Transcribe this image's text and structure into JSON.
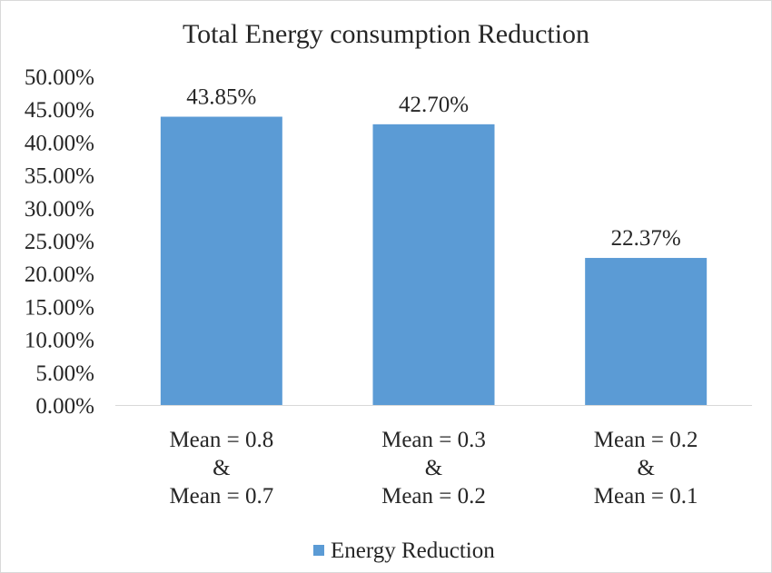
{
  "chart_data": {
    "type": "bar",
    "title": "Total Energy  consumption  Reduction",
    "categories": [
      [
        "Mean = 0.8",
        "&",
        "Mean = 0.7"
      ],
      [
        "Mean = 0.3",
        "&",
        "Mean = 0.2"
      ],
      [
        "Mean = 0.2",
        "&",
        "Mean = 0.1"
      ]
    ],
    "series": [
      {
        "name": "Energy Reduction",
        "values": [
          43.85,
          42.7,
          22.37
        ],
        "labels": [
          "43.85%",
          "42.70%",
          "22.37%"
        ],
        "color": "#5B9BD5"
      }
    ],
    "ylim": [
      0,
      50
    ],
    "yticks": [
      "0.00%",
      "5.00%",
      "10.00%",
      "15.00%",
      "20.00%",
      "25.00%",
      "30.00%",
      "35.00%",
      "40.00%",
      "45.00%",
      "50.00%"
    ],
    "ytick_values": [
      0,
      5,
      10,
      15,
      20,
      25,
      30,
      35,
      40,
      45,
      50
    ],
    "grid": false,
    "legend_position": "bottom",
    "colors": {
      "border": "#D9D9D9",
      "axis": "#D9D9D9",
      "text": "#262626"
    }
  }
}
